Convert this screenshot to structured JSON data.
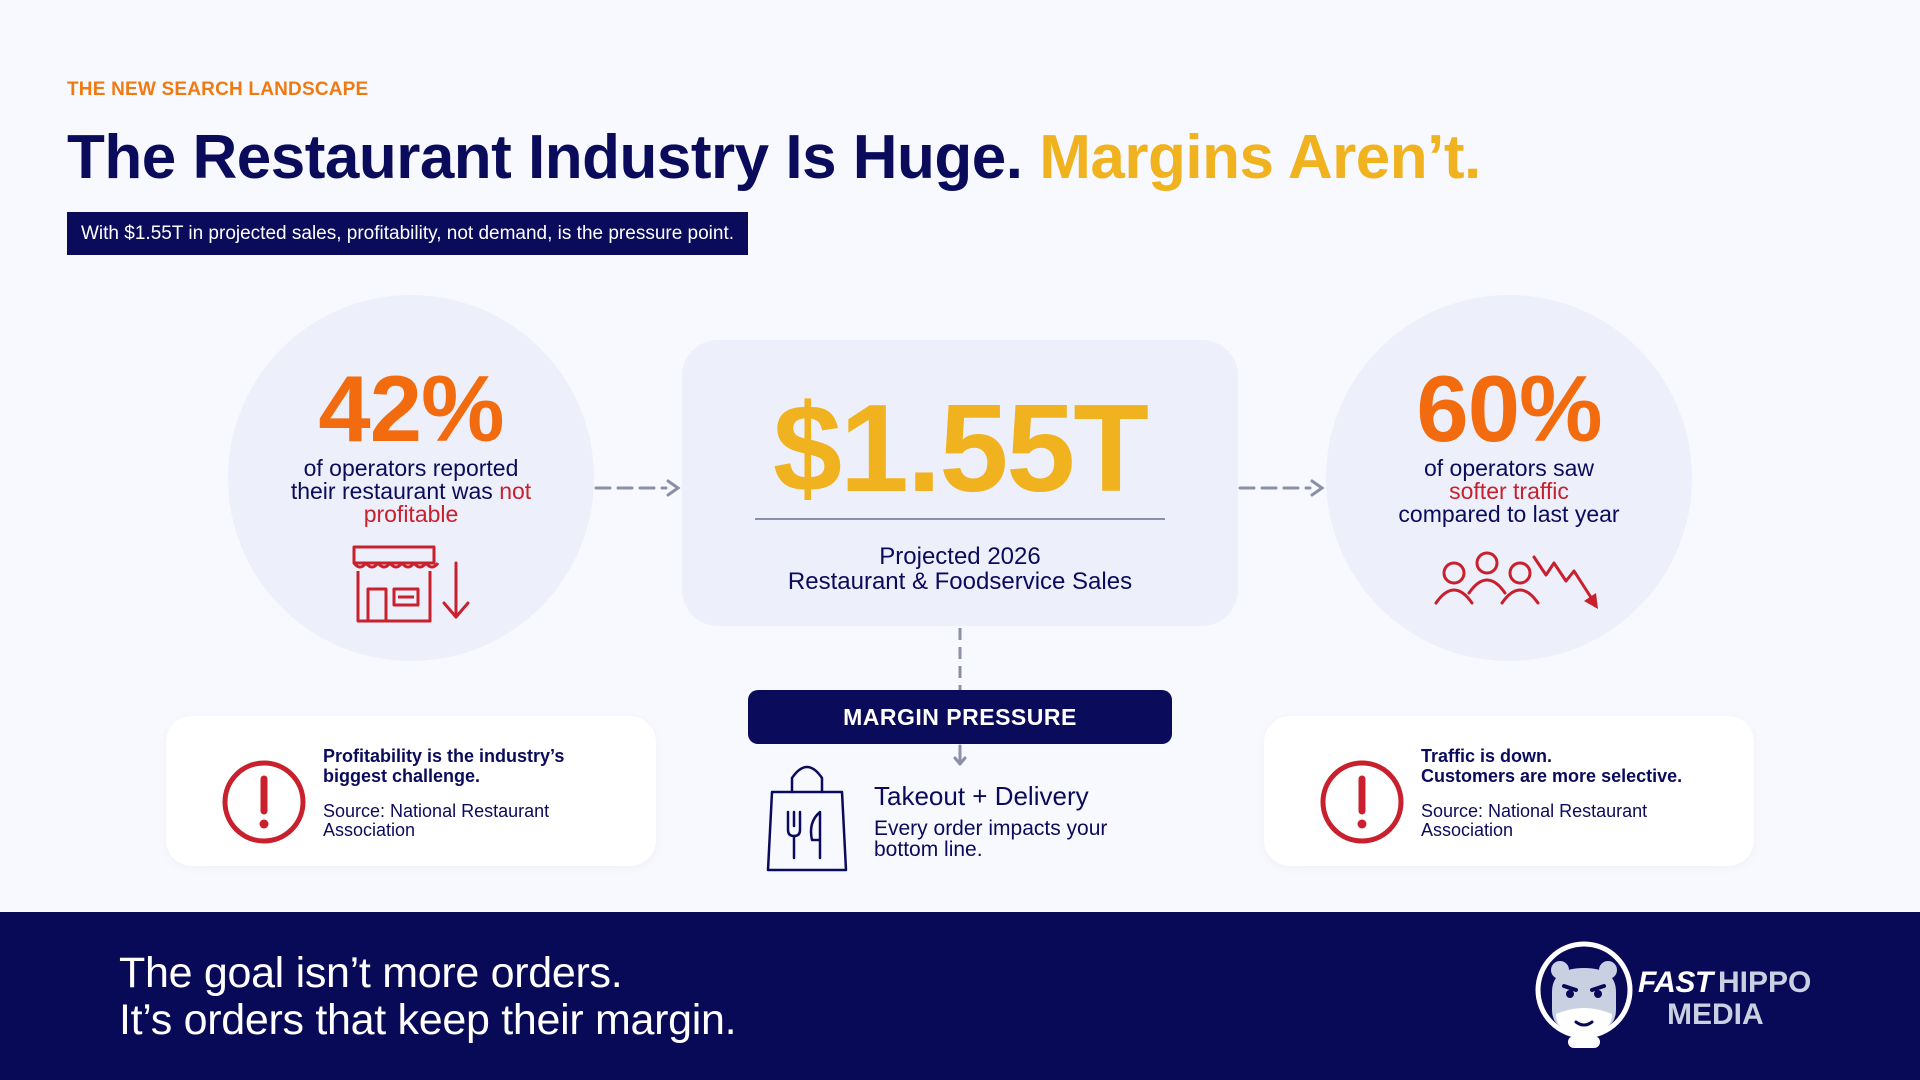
{
  "eyebrow": "THE NEW SEARCH LANDSCAPE",
  "headline": {
    "main": "The Restaurant Industry Is Huge.",
    "accent": "Margins Aren’t."
  },
  "subtitle": "With $1.55T in projected sales, profitability, not demand, is the pressure point.",
  "left_stat": {
    "value": "42%",
    "line1": "of operators reported",
    "line2_prefix": "their restaurant was",
    "line2_highlight": "not",
    "line3_highlight": "profitable",
    "icon": "storefront-down-icon"
  },
  "center_stat": {
    "value": "$1.55T",
    "caption_line1": "Projected 2026",
    "caption_line2": "Restaurant & Foodservice Sales"
  },
  "right_stat": {
    "value": "60%",
    "line1": "of operators saw",
    "line2_highlight": "softer traffic",
    "line3": "compared to last year",
    "icon": "people-trend-down-icon"
  },
  "margin_pressure": {
    "label": "MARGIN PRESSURE",
    "title": "Takeout + Delivery",
    "desc_line1": "Every order impacts your",
    "desc_line2": "bottom line.",
    "icon": "takeout-bag-icon"
  },
  "left_callout": {
    "title_line1": "Profitability is the industry’s",
    "title_line2": "biggest challenge.",
    "source_line1": "Source: National Restaurant",
    "source_line2": "Association",
    "icon": "alert-icon"
  },
  "right_callout": {
    "title_line1": "Traffic is down.",
    "title_line2": "Customers are more selective.",
    "source_line1": "Source: National Restaurant",
    "source_line2": "Association",
    "icon": "alert-icon"
  },
  "footer": {
    "line1": "The goal isn’t more orders.",
    "line2": "It’s orders that keep their margin."
  },
  "brand": {
    "fast": "FAST",
    "hippo": "HIPPO",
    "media": "MEDIA",
    "icon": "hippo-logo-icon"
  },
  "colors": {
    "navy": "#0B0B5C",
    "orange": "#F26B0F",
    "gold": "#F0B21F",
    "red": "#C8202D",
    "arrow_gray": "#8A90A6"
  }
}
